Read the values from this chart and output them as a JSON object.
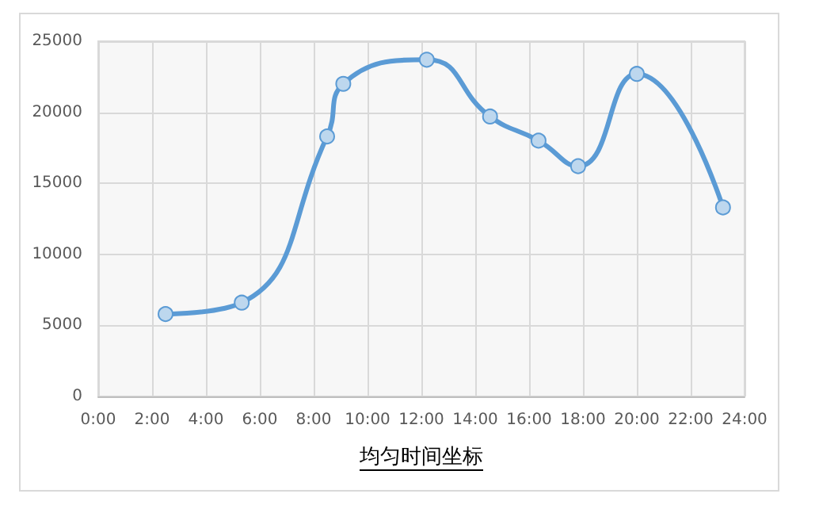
{
  "chart_data": {
    "type": "line",
    "xlabel": "均匀时间坐标",
    "x": [
      2.5,
      5.33,
      8.5,
      9.1,
      12.2,
      14.55,
      16.35,
      17.82,
      20.0,
      23.2
    ],
    "series": [
      {
        "color": "#5b9bd5",
        "values": [
          5800,
          6600,
          18300,
          22000,
          23700,
          19700,
          18000,
          16200,
          22700,
          13300
        ]
      }
    ],
    "xlim": [
      0,
      24
    ],
    "xticks": [
      {
        "value": 0,
        "label": "0:00"
      },
      {
        "value": 2,
        "label": "2:00"
      },
      {
        "value": 4,
        "label": "4:00"
      },
      {
        "value": 6,
        "label": "6:00"
      },
      {
        "value": 8,
        "label": "8:00"
      },
      {
        "value": 10,
        "label": "10:00"
      },
      {
        "value": 12,
        "label": "12:00"
      },
      {
        "value": 14,
        "label": "14:00"
      },
      {
        "value": 16,
        "label": "16:00"
      },
      {
        "value": 18,
        "label": "18:00"
      },
      {
        "value": 20,
        "label": "20:00"
      },
      {
        "value": 22,
        "label": "22:00"
      },
      {
        "value": 24,
        "label": "24:00"
      }
    ],
    "ylim": [
      0,
      25000
    ],
    "yticks": [
      0,
      5000,
      10000,
      15000,
      20000,
      25000
    ],
    "grid": true,
    "marker": "circle",
    "line_style": "solid"
  }
}
